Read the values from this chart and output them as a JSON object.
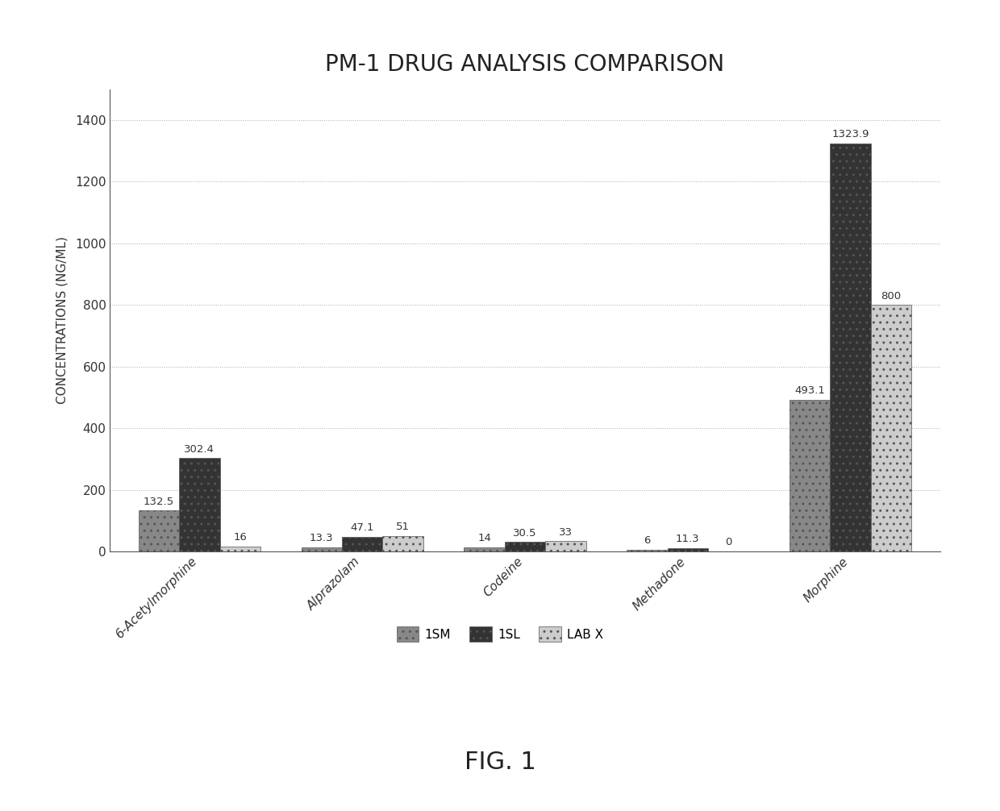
{
  "title": "PM-1 DRUG ANALYSIS COMPARISON",
  "ylabel": "CONCENTRATIONS (NG/ML)",
  "categories": [
    "6-Acetylmorphine",
    "Alprazolam",
    "Codeine",
    "Methadone",
    "Morphine"
  ],
  "series": {
    "1SM": [
      132.5,
      13.3,
      14.0,
      6.0,
      493.1
    ],
    "1SL": [
      302.4,
      47.1,
      30.5,
      11.3,
      1323.9
    ],
    "LAB X": [
      16,
      51,
      33,
      0,
      800
    ]
  },
  "colors": {
    "1SM": "#888888",
    "1SL": "#333333",
    "LAB X": "#cccccc"
  },
  "hatches": {
    "1SM": "..",
    "1SL": "..",
    "LAB X": ".."
  },
  "ylim": [
    0,
    1500
  ],
  "yticks": [
    0,
    200,
    400,
    600,
    800,
    1000,
    1200,
    1400
  ],
  "fig_caption": "FIG. 1",
  "background_color": "#ffffff"
}
